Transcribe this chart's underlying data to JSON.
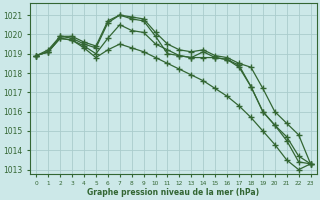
{
  "xlabel": "Graphe pression niveau de la mer (hPa)",
  "background_color": "#cce8e8",
  "grid_color": "#aacccc",
  "line_color": "#336633",
  "ylim_min": 1012.8,
  "ylim_max": 1021.6,
  "yticks": [
    1013,
    1014,
    1015,
    1016,
    1017,
    1018,
    1019,
    1020,
    1021
  ],
  "series": [
    [
      1018.9,
      1019.1,
      1019.9,
      1019.8,
      1019.5,
      1019.3,
      1020.6,
      1021.0,
      1020.8,
      1020.7,
      1019.9,
      1019.0,
      1018.9,
      1018.8,
      1019.1,
      1018.8,
      1018.7,
      1018.3,
      1017.3,
      1016.0,
      1015.3,
      1014.7,
      1013.7,
      1013.3
    ],
    [
      1018.9,
      1019.2,
      1019.9,
      1019.9,
      1019.6,
      1019.4,
      1020.7,
      1021.0,
      1020.9,
      1020.8,
      1020.1,
      1019.5,
      1019.2,
      1019.1,
      1019.2,
      1018.9,
      1018.8,
      1018.5,
      1018.3,
      1017.2,
      1016.0,
      1015.4,
      1014.8,
      1013.3
    ],
    [
      1018.9,
      1019.1,
      1019.8,
      1019.7,
      1019.4,
      1019.0,
      1019.8,
      1020.5,
      1020.2,
      1020.1,
      1019.5,
      1019.2,
      1018.9,
      1018.8,
      1018.8,
      1018.8,
      1018.7,
      1018.4,
      1017.3,
      1016.0,
      1015.3,
      1014.5,
      1013.4,
      1013.3
    ],
    [
      1018.9,
      1019.1,
      1019.8,
      1019.7,
      1019.3,
      1018.8,
      1019.2,
      1019.5,
      1019.3,
      1019.1,
      1018.8,
      1018.5,
      1018.2,
      1017.9,
      1017.6,
      1017.2,
      1016.8,
      1016.3,
      1015.7,
      1015.0,
      1014.3,
      1013.5,
      1013.0,
      1013.3
    ]
  ]
}
